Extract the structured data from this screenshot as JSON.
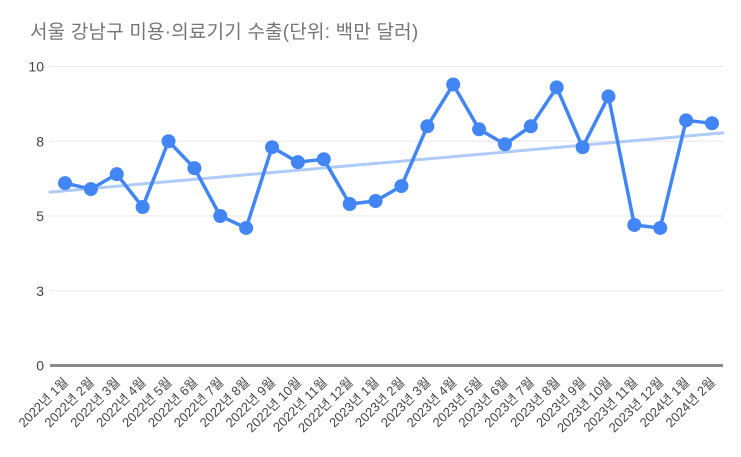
{
  "chart_data": {
    "type": "line",
    "title": "서울 강남구 미용·의료기기 수출(단위: 백만 달러)",
    "xlabel": "",
    "ylabel": "",
    "ylim": [
      0,
      10
    ],
    "grid": true,
    "legend_position": "none",
    "categories": [
      "2022년 1월",
      "2022년 2월",
      "2022년 3월",
      "2022년 4월",
      "2022년 5월",
      "2022년 6월",
      "2022년 7월",
      "2022년 8월",
      "2022년 9월",
      "2022년 10월",
      "2022년 11월",
      "2022년 12월",
      "2023년 1월",
      "2023년 2월",
      "2023년 3월",
      "2023년 4월",
      "2023년 5월",
      "2023년 6월",
      "2023년 7월",
      "2023년 8월",
      "2023년 9월",
      "2023년 10월",
      "2023년 11월",
      "2023년 12월",
      "2024년 1월",
      "2024년 2월"
    ],
    "values": [
      6.1,
      5.9,
      6.4,
      5.3,
      7.5,
      6.6,
      5.0,
      4.6,
      7.3,
      6.8,
      6.9,
      5.4,
      5.5,
      6.0,
      8.0,
      9.4,
      7.9,
      7.4,
      8.0,
      9.3,
      7.3,
      9.0,
      4.7,
      4.6,
      8.2,
      8.1
    ],
    "y_ticks": [
      {
        "value": 0,
        "label": "0"
      },
      {
        "value": 2.5,
        "label": "3"
      },
      {
        "value": 5,
        "label": "5"
      },
      {
        "value": 7.5,
        "label": "8"
      },
      {
        "value": 10,
        "label": "10"
      }
    ],
    "trendline": {
      "start_value": 5.8,
      "end_value": 7.78
    },
    "colors": {
      "series": "#4285f4",
      "trendline": "#aecbfa",
      "gridline": "#e6e6e6",
      "axis_line": "#8a8a8a",
      "title": "#757575",
      "tick_label": "#444444"
    }
  }
}
